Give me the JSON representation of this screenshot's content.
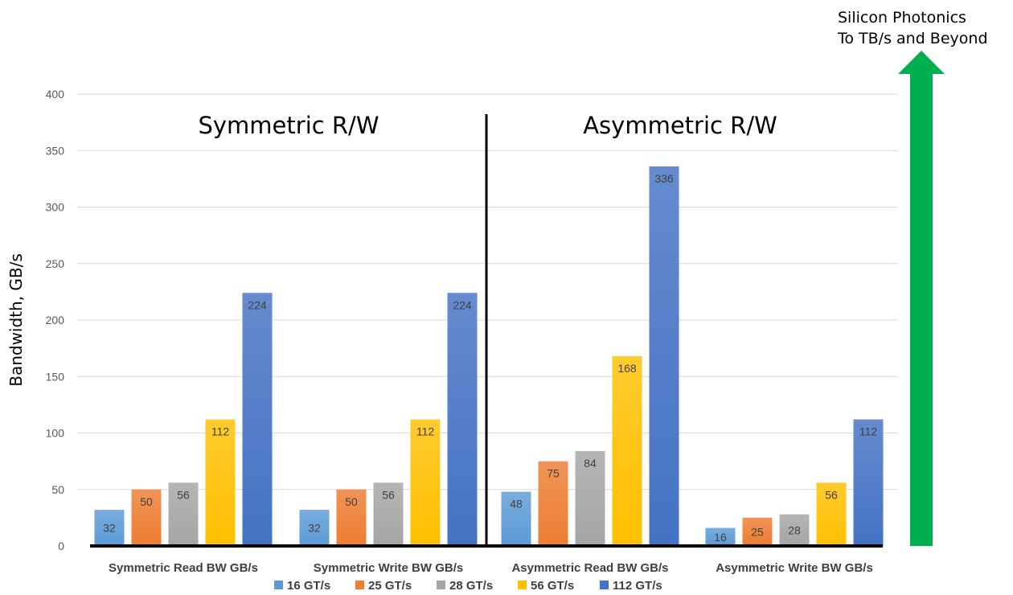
{
  "chart_data": {
    "type": "bar",
    "categories": [
      "Symmetric Read BW GB/s",
      "Symmetric Write BW GB/s",
      "Asymmetric Read BW GB/s",
      "Asymmetric Write BW GB/s"
    ],
    "series": [
      {
        "name": "16 GT/s",
        "color": "#5B9BD5",
        "values": [
          32,
          32,
          48,
          16
        ]
      },
      {
        "name": "25 GT/s",
        "color": "#ED7D31",
        "values": [
          50,
          50,
          75,
          25
        ]
      },
      {
        "name": "28 GT/s",
        "color": "#A5A5A5",
        "values": [
          56,
          56,
          84,
          28
        ]
      },
      {
        "name": "56 GT/s",
        "color": "#FFC000",
        "values": [
          112,
          112,
          168,
          56
        ]
      },
      {
        "name": "112 GT/s",
        "color": "#4472C4",
        "values": [
          224,
          224,
          336,
          112
        ]
      }
    ],
    "ylabel": "Bandwidth, GB/s",
    "ylim": [
      0,
      400
    ],
    "yticks": [
      0,
      50,
      100,
      150,
      200,
      250,
      300,
      350,
      400
    ],
    "grid": true,
    "legend_position": "bottom",
    "sections": [
      "Symmetric R/W",
      "Asymmetric R/W"
    ],
    "annotation": {
      "line1": "Silicon Photonics",
      "line2": "To TB/s and Beyond",
      "arrow_color": "#00B050"
    }
  }
}
